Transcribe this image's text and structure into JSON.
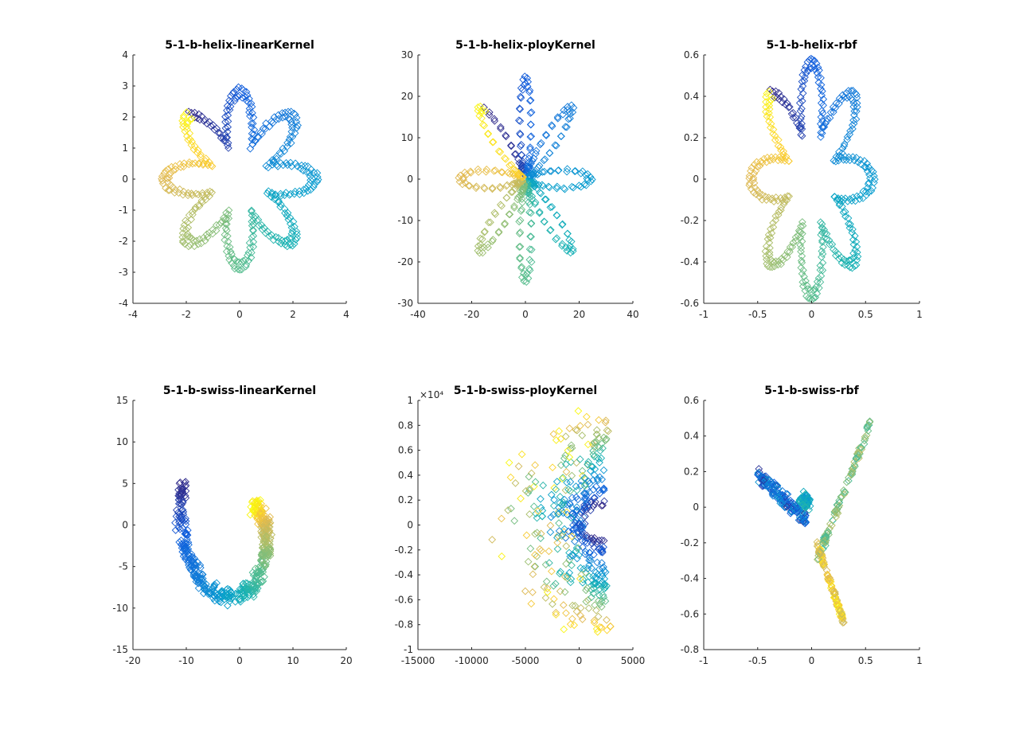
{
  "figure": {
    "background": "#ffffff",
    "colormap": "parula"
  },
  "chart_data": [
    {
      "type": "scatter",
      "title": "5-1-b-helix-linearKernel",
      "marker": "diamond",
      "xlim": [
        -4,
        4
      ],
      "ylim": [
        -4,
        4
      ],
      "xticks": [
        -4,
        -2,
        0,
        2,
        4
      ],
      "yticks": [
        -4,
        -3,
        -2,
        -1,
        0,
        1,
        2,
        3,
        4
      ],
      "xtick_labels": [
        "-4",
        "-2",
        "0",
        "2",
        "4"
      ],
      "ytick_labels": [
        "-4",
        "-3",
        "-2",
        "-1",
        "0",
        "1",
        "2",
        "3",
        "4"
      ],
      "exponent_label": "",
      "gen": {
        "kind": "flower",
        "petals": 8,
        "r0": 1.2,
        "amp": 1.6,
        "phase": 2.3,
        "rotate": 0.0,
        "scale": 1.0,
        "jitter": 0.12,
        "n": 420
      }
    },
    {
      "type": "scatter",
      "title": "5-1-b-helix-ployKernel",
      "marker": "diamond",
      "xlim": [
        -40,
        40
      ],
      "ylim": [
        -30,
        30
      ],
      "xticks": [
        -40,
        -20,
        0,
        20,
        40
      ],
      "yticks": [
        -30,
        -20,
        -10,
        0,
        10,
        20,
        30
      ],
      "xtick_labels": [
        "-40",
        "-20",
        "0",
        "20",
        "40"
      ],
      "ytick_labels": [
        "-30",
        "-20",
        "-10",
        "0",
        "10",
        "20",
        "30"
      ],
      "exponent_label": "",
      "gen": {
        "kind": "star",
        "petals": 8,
        "r0": 2,
        "amp": 22,
        "phase": 2.3,
        "rotate": 0.0,
        "scale": 1.0,
        "jitter": 0.8,
        "n": 420
      }
    },
    {
      "type": "scatter",
      "title": "5-1-b-helix-rbf",
      "marker": "diamond",
      "xlim": [
        -1,
        1
      ],
      "ylim": [
        -0.6,
        0.6
      ],
      "xticks": [
        -1,
        -0.5,
        0,
        0.5,
        1
      ],
      "yticks": [
        -0.6,
        -0.4,
        -0.2,
        0,
        0.2,
        0.4,
        0.6
      ],
      "xtick_labels": [
        "-1",
        "-0.5",
        "0",
        "0.5",
        "1"
      ],
      "ytick_labels": [
        "-0.6",
        "-0.4",
        "-0.2",
        "0",
        "0.2",
        "0.4",
        "0.6"
      ],
      "exponent_label": "",
      "gen": {
        "kind": "flower",
        "petals": 8,
        "r0": 0.24,
        "amp": 0.32,
        "phase": 2.3,
        "rotate": 0.0,
        "scale": 1.0,
        "jitter": 0.02,
        "n": 420
      }
    },
    {
      "type": "scatter",
      "title": "5-1-b-swiss-linearKernel",
      "marker": "diamond",
      "xlim": [
        -20,
        20
      ],
      "ylim": [
        -15,
        15
      ],
      "xticks": [
        -20,
        -10,
        0,
        10,
        20
      ],
      "yticks": [
        -15,
        -10,
        -5,
        0,
        5,
        10,
        15
      ],
      "xtick_labels": [
        "-20",
        "-10",
        "0",
        "10",
        "20"
      ],
      "ytick_labels": [
        "-15",
        "-10",
        "-5",
        "0",
        "5",
        "10",
        "15"
      ],
      "exponent_label": "",
      "gen": {
        "kind": "swissflat",
        "n": 480
      }
    },
    {
      "type": "scatter",
      "title": "5-1-b-swiss-ployKernel",
      "marker": "diamond",
      "xlim": [
        -15000,
        5000
      ],
      "ylim": [
        -1,
        1
      ],
      "xticks": [
        -15000,
        -10000,
        -5000,
        0,
        5000
      ],
      "yticks": [
        -1,
        -0.8,
        -0.6,
        -0.4,
        -0.2,
        0,
        0.2,
        0.4,
        0.6,
        0.8,
        1
      ],
      "xtick_labels": [
        "-15000",
        "-10000",
        "-5000",
        "0",
        "5000"
      ],
      "ytick_labels": [
        "-1",
        "-0.8",
        "-0.6",
        "-0.4",
        "-0.2",
        "0",
        "0.2",
        "0.4",
        "0.6",
        "0.8",
        "1"
      ],
      "exponent_label": "×10⁴",
      "gen": {
        "kind": "fan",
        "n": 420
      }
    },
    {
      "type": "scatter",
      "title": "5-1-b-swiss-rbf",
      "marker": "diamond",
      "xlim": [
        -1,
        1
      ],
      "ylim": [
        -0.8,
        0.6
      ],
      "xticks": [
        -1,
        -0.5,
        0,
        0.5,
        1
      ],
      "yticks": [
        -0.8,
        -0.6,
        -0.4,
        -0.2,
        0,
        0.2,
        0.4,
        0.6
      ],
      "xtick_labels": [
        "-1",
        "-0.5",
        "0",
        "0.5",
        "1"
      ],
      "ytick_labels": [
        "-0.8",
        "-0.6",
        "-0.4",
        "-0.2",
        "0",
        "0.2",
        "0.4",
        "0.6"
      ],
      "exponent_label": "",
      "gen": {
        "kind": "triangle",
        "n": 460
      }
    }
  ]
}
